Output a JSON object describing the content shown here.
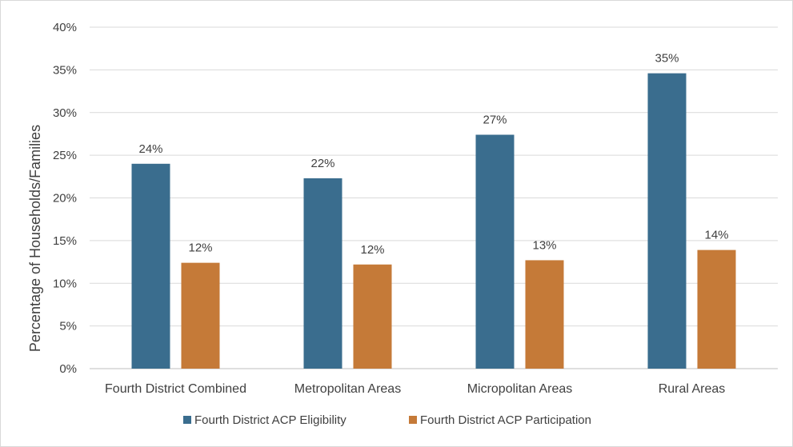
{
  "chart_data": {
    "type": "bar",
    "title": "",
    "xlabel": "",
    "ylabel": "Percentage of Households/Families",
    "ylim": [
      0,
      40
    ],
    "yticks": [
      "0%",
      "5%",
      "10%",
      "15%",
      "20%",
      "25%",
      "30%",
      "35%",
      "40%"
    ],
    "ytick_values": [
      0,
      5,
      10,
      15,
      20,
      25,
      30,
      35,
      40
    ],
    "grid": true,
    "legend_position": "bottom",
    "categories": [
      "Fourth District Combined",
      "Metropolitan Areas",
      "Micropolitan  Areas",
      "Rural Areas"
    ],
    "series": [
      {
        "name": "Fourth District ACP Eligibility",
        "color": "#3a6d8e",
        "values": [
          24.0,
          22.3,
          27.4,
          34.6
        ],
        "labels": [
          "24%",
          "22%",
          "27%",
          "35%"
        ]
      },
      {
        "name": "Fourth District ACP Participation",
        "color": "#c57a38",
        "values": [
          12.4,
          12.2,
          12.7,
          13.9
        ],
        "labels": [
          "12%",
          "12%",
          "13%",
          "14%"
        ]
      }
    ]
  }
}
